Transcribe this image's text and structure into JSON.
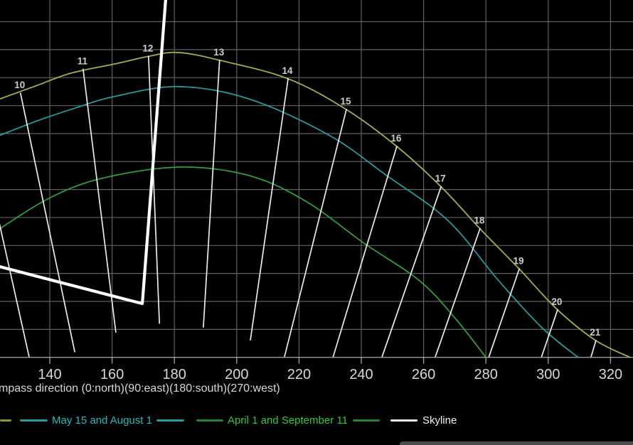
{
  "colors": {
    "background": "#000000",
    "grid": "#616161",
    "axis": "#9a9a9a",
    "hour_line": "#ececec",
    "hour_label": "#cdcdcd",
    "tick_label": "#d8d8d8",
    "skyline": "#ffffff",
    "scrollbar_thumb": "#4d4d4d"
  },
  "chart_data": {
    "type": "line",
    "title": "",
    "xlabel": "mpass direction (0:north)(90:east)(180:south)(270:west)",
    "ylabel": "",
    "x_ticks": [
      140,
      160,
      180,
      200,
      220,
      240,
      260,
      280,
      300,
      320
    ],
    "x_range_visible": [
      124,
      327
    ],
    "y_axis_note": "elevation axis labels cut off at left edge; horizontal gridlines estimated at 5-degree steps from 0 (horizon line at bottom axis) to 60",
    "y_gridlines_deg": [
      5,
      10,
      15,
      20,
      25,
      30,
      35,
      40,
      45,
      50,
      55,
      60
    ],
    "grid": true,
    "legend_position": "bottom",
    "series": [
      {
        "name": "",
        "note": "uppermost hour-labeled curve; its legend label is cut off at left edge (only a yellow dash visible)",
        "color": "#a6aa4c",
        "smooth": true,
        "points": [
          [
            124.0,
            46.2
          ],
          [
            135.4,
            48.5
          ],
          [
            146.8,
            50.8
          ],
          [
            160.5,
            52.4
          ],
          [
            171.7,
            53.8
          ],
          [
            181.1,
            54.5
          ],
          [
            194.5,
            53.1
          ],
          [
            216.5,
            49.8
          ],
          [
            235.2,
            44.3
          ],
          [
            251.4,
            37.7
          ],
          [
            265.6,
            30.5
          ],
          [
            278.1,
            23.0
          ],
          [
            290.7,
            15.8
          ],
          [
            303.0,
            8.5
          ],
          [
            315.3,
            3.0
          ],
          [
            326.3,
            0.0
          ]
        ]
      },
      {
        "name": "May 15 and August 1",
        "color": "#27999e",
        "smooth": true,
        "points": [
          [
            124.0,
            39.7
          ],
          [
            136.1,
            42.3
          ],
          [
            148.4,
            44.6
          ],
          [
            160.5,
            46.6
          ],
          [
            181.1,
            48.4
          ],
          [
            203.9,
            46.2
          ],
          [
            229.7,
            39.7
          ],
          [
            248.4,
            32.4
          ],
          [
            263.3,
            26.6
          ],
          [
            272.2,
            21.9
          ],
          [
            283.8,
            13.9
          ],
          [
            298.2,
            5.2
          ],
          [
            309.6,
            0.0
          ]
        ]
      },
      {
        "name": "April 1 and September 11",
        "color": "#2e9e40",
        "smooth": true,
        "points": [
          [
            124.0,
            23.0
          ],
          [
            139.3,
            28.3
          ],
          [
            156.0,
            31.9
          ],
          [
            181.1,
            34.0
          ],
          [
            203.9,
            32.5
          ],
          [
            222.2,
            27.9
          ],
          [
            240.9,
            20.4
          ],
          [
            258.7,
            13.7
          ],
          [
            270.1,
            7.0
          ],
          [
            280.0,
            0.0
          ]
        ]
      },
      {
        "name": "Skyline",
        "color": "#ffffff",
        "smooth": false,
        "thick": true,
        "points": [
          [
            124.0,
            16.2
          ],
          [
            169.7,
            9.6
          ],
          [
            177.2,
            63.9
          ]
        ]
      }
    ],
    "hour_lines": [
      {
        "label": "",
        "from": [
          116.0,
          43.5
        ],
        "to": [
          133.4,
          0.0
        ]
      },
      {
        "label": "10",
        "from": [
          130.6,
          47.2
        ],
        "to": [
          148.0,
          1.0
        ]
      },
      {
        "label": "11",
        "from": [
          150.7,
          51.5
        ],
        "to": [
          161.2,
          4.5
        ]
      },
      {
        "label": "12",
        "from": [
          171.7,
          53.8
        ],
        "to": [
          175.2,
          6.1
        ]
      },
      {
        "label": "13",
        "from": [
          194.5,
          53.1
        ],
        "to": [
          189.3,
          5.4
        ]
      },
      {
        "label": "14",
        "from": [
          216.5,
          49.8
        ],
        "to": [
          204.4,
          3.1
        ]
      },
      {
        "label": "15",
        "from": [
          235.2,
          44.3
        ],
        "to": [
          215.3,
          0.0
        ]
      },
      {
        "label": "16",
        "from": [
          251.4,
          37.7
        ],
        "to": [
          230.9,
          0.0
        ]
      },
      {
        "label": "17",
        "from": [
          265.6,
          30.5
        ],
        "to": [
          246.6,
          0.0
        ]
      },
      {
        "label": "18",
        "from": [
          278.1,
          23.0
        ],
        "to": [
          263.7,
          0.0
        ]
      },
      {
        "label": "19",
        "from": [
          290.7,
          15.8
        ],
        "to": [
          280.9,
          0.0
        ]
      },
      {
        "label": "20",
        "from": [
          303.0,
          8.5
        ],
        "to": [
          297.8,
          0.0
        ]
      },
      {
        "label": "21",
        "from": [
          315.3,
          3.0
        ],
        "to": [
          313.7,
          0.0
        ]
      }
    ]
  },
  "legend": {
    "items": [
      {
        "type": "line",
        "color": "#8f9630",
        "name": "yellow-series-dash-cutoff"
      },
      {
        "type": "line",
        "color": "#27999e",
        "name": "cyan-series-dash"
      },
      {
        "type": "text",
        "color": "#2ab9b9",
        "label": "May 15 and August 1"
      },
      {
        "type": "line",
        "color": "#27999e",
        "name": "cyan-series-dash"
      },
      {
        "type": "line",
        "color": "#238636",
        "name": "green-series-dash"
      },
      {
        "type": "text",
        "color": "#2fc845",
        "label": "April 1 and September 11"
      },
      {
        "type": "line",
        "color": "#238636",
        "name": "green-series-dash"
      },
      {
        "type": "line",
        "color": "#e9e9e9",
        "name": "skyline-dash"
      },
      {
        "type": "text",
        "color": "#f2f2f2",
        "label": "Skyline"
      }
    ]
  }
}
